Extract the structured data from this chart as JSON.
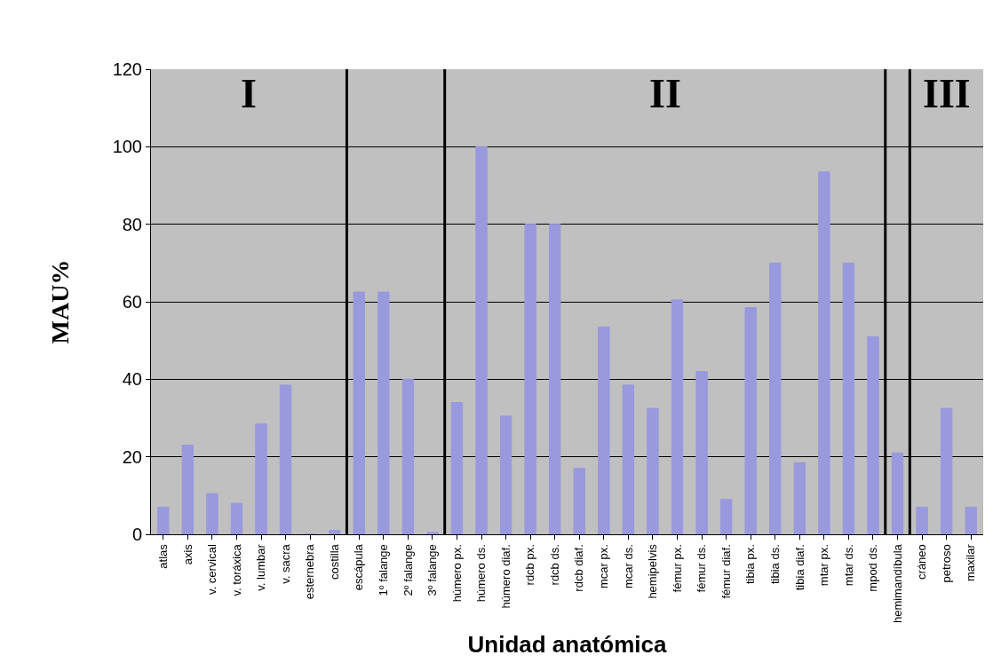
{
  "chart_data": {
    "type": "bar",
    "xlabel": "Unidad anatómica",
    "ylabel": "MAU%",
    "categories": [
      "atlas",
      "axis",
      "v. cervical",
      "v. toráxica",
      "v. lumbar",
      "v. sacra",
      "esternebra",
      "costilla",
      "escápula",
      "1º falange",
      "2º falange",
      "3º falange",
      "húmero px.",
      "húmero ds.",
      "húmero diaf.",
      "rdcb px.",
      "rdcb ds.",
      "rdcb diaf.",
      "mcar px.",
      "mcar ds.",
      "hemipelvis",
      "fémur px.",
      "fémur ds.",
      "fémur diaf.",
      "tibia px.",
      "tibia ds.",
      "tibia diaf.",
      "mtar px.",
      "mtar ds.",
      "mpod ds.",
      "hemimandíbula",
      "cráneo",
      "petroso",
      "maxilar"
    ],
    "values": [
      7,
      23,
      10.5,
      8,
      28.5,
      38.5,
      0,
      1,
      62.5,
      62.5,
      40,
      0.5,
      34,
      100,
      30.5,
      80,
      80,
      17,
      53.5,
      38.5,
      32.5,
      60.5,
      42,
      9,
      58.5,
      70,
      18.5,
      93.5,
      70,
      51,
      21,
      7,
      32.5,
      7
    ],
    "color": "#9999dd",
    "ylim": [
      0,
      120
    ],
    "yticks": [
      0,
      20,
      40,
      60,
      80,
      100,
      120
    ],
    "grid": "y",
    "annotations": [
      "I",
      "II",
      "III"
    ]
  }
}
